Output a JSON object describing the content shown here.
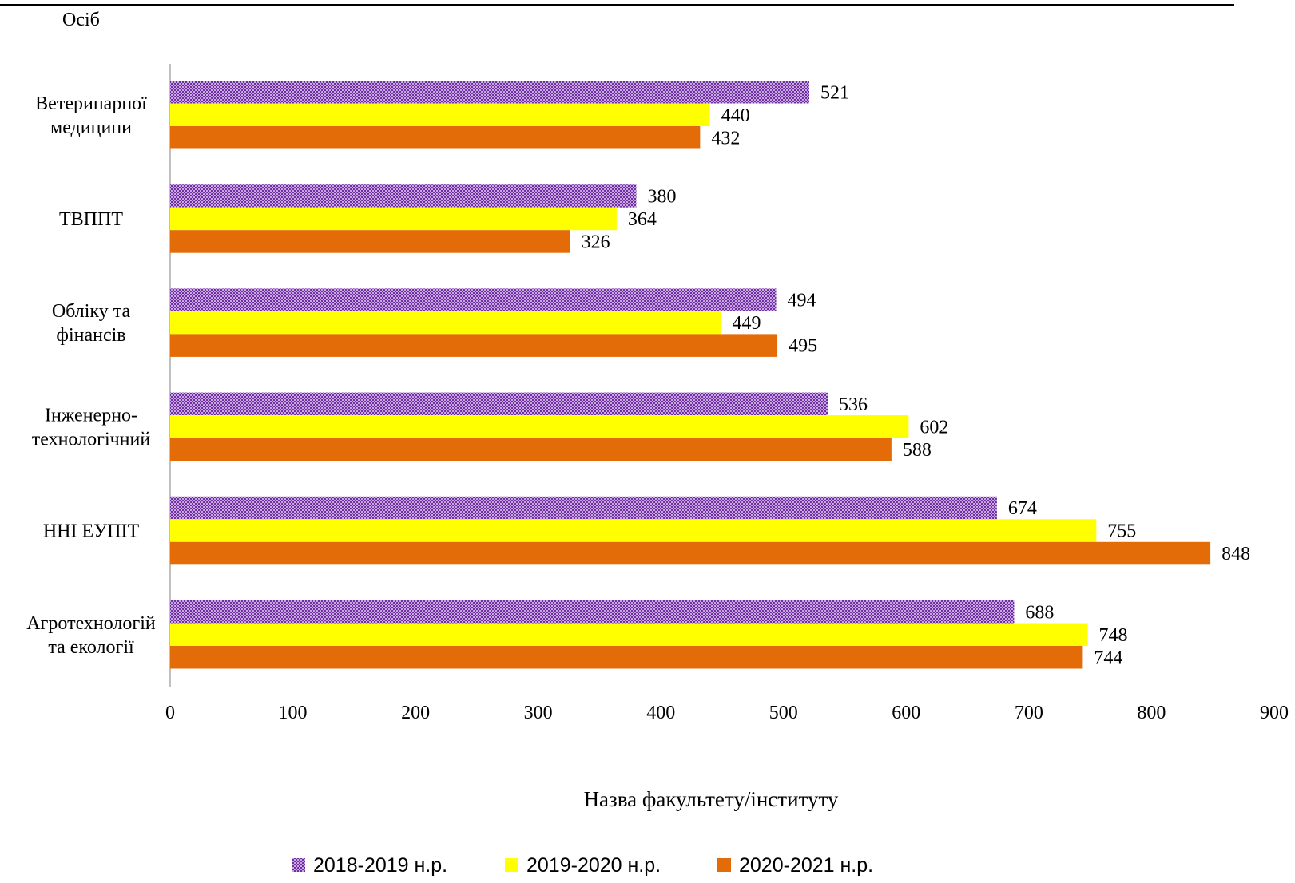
{
  "chart_data": {
    "type": "bar",
    "orientation": "horizontal",
    "categories": [
      [
        "Ветеринарної",
        "медицини"
      ],
      [
        "ТВППТ"
      ],
      [
        "Обліку та",
        "фінансів"
      ],
      [
        "Інженерно-",
        "технологічний"
      ],
      [
        "ННІ ЕУПІТ"
      ],
      [
        "Агротехнологій",
        "та екології"
      ]
    ],
    "series": [
      {
        "name": "2018-2019 н.р.",
        "values": [
          521,
          380,
          494,
          536,
          674,
          688
        ],
        "color": "#7030A0",
        "pattern": "dotted"
      },
      {
        "name": "2019-2020 н.р.",
        "values": [
          440,
          364,
          449,
          602,
          755,
          748
        ],
        "color": "#FFFF00"
      },
      {
        "name": "2020-2021 н.р.",
        "values": [
          432,
          326,
          495,
          588,
          848,
          744
        ],
        "color": "#E36C09"
      }
    ],
    "xlim": [
      0,
      900
    ],
    "xticks": [
      0,
      100,
      200,
      300,
      400,
      500,
      600,
      700,
      800,
      900
    ],
    "ylabel": "Осіб",
    "xlabel": "Назва факультету/інституту",
    "legend_position": "bottom",
    "grid": false,
    "data_labels": true
  }
}
